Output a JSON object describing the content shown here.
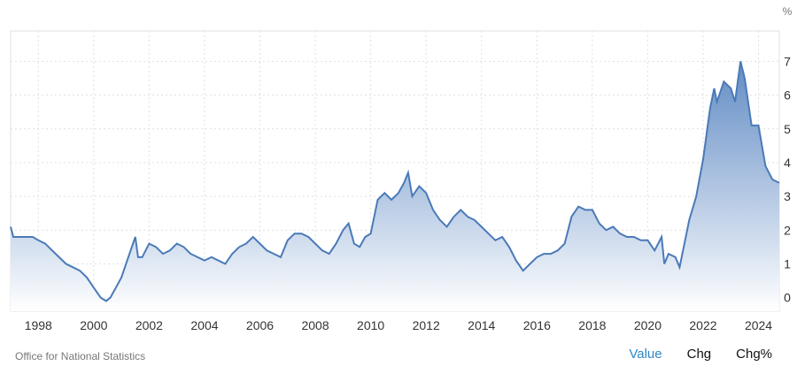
{
  "chart_data": {
    "type": "area",
    "unit": "%",
    "xlabel": "",
    "ylabel": "",
    "xlim": [
      1997.0,
      2024.75
    ],
    "ylim": [
      -0.4,
      7.9
    ],
    "x_ticks": [
      1998,
      2000,
      2002,
      2004,
      2006,
      2008,
      2010,
      2012,
      2014,
      2016,
      2018,
      2020,
      2022,
      2024
    ],
    "y_ticks": [
      0,
      1,
      2,
      3,
      4,
      5,
      6,
      7
    ],
    "grid": true,
    "colors": {
      "line": "#4a7ab8",
      "fill_top": "#5b87c2",
      "fill_bottom": "#ffffff",
      "grid": "#e0e0e0",
      "axis_text": "#333333"
    },
    "series": [
      {
        "values": [
          [
            1997.0,
            2.1
          ],
          [
            1997.1,
            1.8
          ],
          [
            1997.5,
            1.8
          ],
          [
            1997.8,
            1.8
          ],
          [
            1998.0,
            1.7
          ],
          [
            1998.25,
            1.6
          ],
          [
            1998.5,
            1.4
          ],
          [
            1998.75,
            1.2
          ],
          [
            1999.0,
            1.0
          ],
          [
            1999.25,
            0.9
          ],
          [
            1999.5,
            0.8
          ],
          [
            1999.75,
            0.6
          ],
          [
            2000.0,
            0.3
          ],
          [
            2000.25,
            0.0
          ],
          [
            2000.45,
            -0.1
          ],
          [
            2000.6,
            0.0
          ],
          [
            2000.8,
            0.3
          ],
          [
            2001.0,
            0.6
          ],
          [
            2001.25,
            1.2
          ],
          [
            2001.5,
            1.8
          ],
          [
            2001.6,
            1.2
          ],
          [
            2001.75,
            1.2
          ],
          [
            2002.0,
            1.6
          ],
          [
            2002.25,
            1.5
          ],
          [
            2002.5,
            1.3
          ],
          [
            2002.75,
            1.4
          ],
          [
            2003.0,
            1.6
          ],
          [
            2003.25,
            1.5
          ],
          [
            2003.5,
            1.3
          ],
          [
            2003.75,
            1.2
          ],
          [
            2004.0,
            1.1
          ],
          [
            2004.25,
            1.2
          ],
          [
            2004.5,
            1.1
          ],
          [
            2004.75,
            1.0
          ],
          [
            2005.0,
            1.3
          ],
          [
            2005.25,
            1.5
          ],
          [
            2005.5,
            1.6
          ],
          [
            2005.75,
            1.8
          ],
          [
            2006.0,
            1.6
          ],
          [
            2006.25,
            1.4
          ],
          [
            2006.5,
            1.3
          ],
          [
            2006.75,
            1.2
          ],
          [
            2007.0,
            1.7
          ],
          [
            2007.25,
            1.9
          ],
          [
            2007.5,
            1.9
          ],
          [
            2007.75,
            1.8
          ],
          [
            2008.0,
            1.6
          ],
          [
            2008.25,
            1.4
          ],
          [
            2008.5,
            1.3
          ],
          [
            2008.75,
            1.6
          ],
          [
            2009.0,
            2.0
          ],
          [
            2009.2,
            2.2
          ],
          [
            2009.4,
            1.6
          ],
          [
            2009.6,
            1.5
          ],
          [
            2009.8,
            1.8
          ],
          [
            2010.0,
            1.9
          ],
          [
            2010.25,
            2.9
          ],
          [
            2010.5,
            3.1
          ],
          [
            2010.75,
            2.9
          ],
          [
            2011.0,
            3.1
          ],
          [
            2011.2,
            3.4
          ],
          [
            2011.35,
            3.7
          ],
          [
            2011.5,
            3.0
          ],
          [
            2011.75,
            3.3
          ],
          [
            2012.0,
            3.1
          ],
          [
            2012.25,
            2.6
          ],
          [
            2012.5,
            2.3
          ],
          [
            2012.75,
            2.1
          ],
          [
            2013.0,
            2.4
          ],
          [
            2013.25,
            2.6
          ],
          [
            2013.5,
            2.4
          ],
          [
            2013.75,
            2.3
          ],
          [
            2014.0,
            2.1
          ],
          [
            2014.25,
            1.9
          ],
          [
            2014.5,
            1.7
          ],
          [
            2014.75,
            1.8
          ],
          [
            2015.0,
            1.5
          ],
          [
            2015.25,
            1.1
          ],
          [
            2015.5,
            0.8
          ],
          [
            2015.75,
            1.0
          ],
          [
            2016.0,
            1.2
          ],
          [
            2016.25,
            1.3
          ],
          [
            2016.5,
            1.3
          ],
          [
            2016.75,
            1.4
          ],
          [
            2017.0,
            1.6
          ],
          [
            2017.25,
            2.4
          ],
          [
            2017.5,
            2.7
          ],
          [
            2017.75,
            2.6
          ],
          [
            2018.0,
            2.6
          ],
          [
            2018.25,
            2.2
          ],
          [
            2018.5,
            2.0
          ],
          [
            2018.75,
            2.1
          ],
          [
            2019.0,
            1.9
          ],
          [
            2019.25,
            1.8
          ],
          [
            2019.5,
            1.8
          ],
          [
            2019.75,
            1.7
          ],
          [
            2020.0,
            1.7
          ],
          [
            2020.25,
            1.4
          ],
          [
            2020.5,
            1.8
          ],
          [
            2020.6,
            1.0
          ],
          [
            2020.75,
            1.3
          ],
          [
            2021.0,
            1.2
          ],
          [
            2021.15,
            0.9
          ],
          [
            2021.3,
            1.5
          ],
          [
            2021.5,
            2.3
          ],
          [
            2021.75,
            3.0
          ],
          [
            2022.0,
            4.1
          ],
          [
            2022.25,
            5.6
          ],
          [
            2022.4,
            6.2
          ],
          [
            2022.5,
            5.8
          ],
          [
            2022.75,
            6.4
          ],
          [
            2023.0,
            6.2
          ],
          [
            2023.15,
            5.8
          ],
          [
            2023.35,
            7.0
          ],
          [
            2023.5,
            6.5
          ],
          [
            2023.75,
            5.1
          ],
          [
            2024.0,
            5.1
          ],
          [
            2024.25,
            3.9
          ],
          [
            2024.5,
            3.5
          ],
          [
            2024.75,
            3.4
          ]
        ]
      }
    ]
  },
  "footer": {
    "source": "Office for National Statistics",
    "tabs": {
      "value": "Value",
      "chg": "Chg",
      "chg_pct": "Chg%"
    }
  }
}
